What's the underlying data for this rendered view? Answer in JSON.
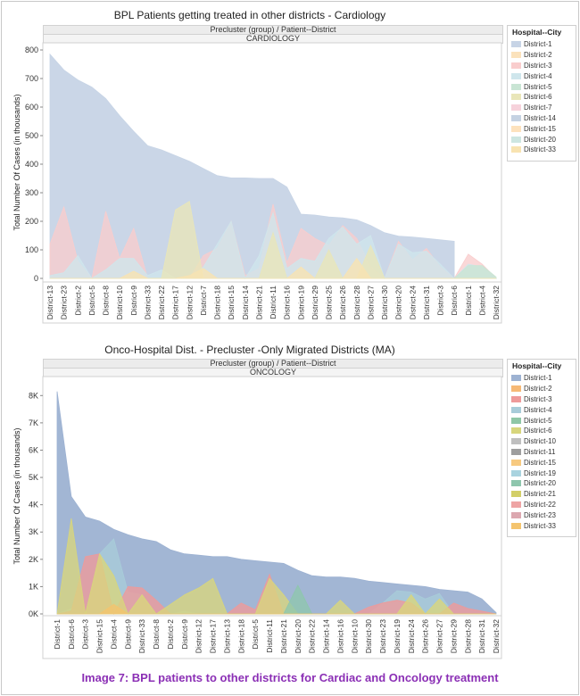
{
  "caption": "Image 7: BPL patients to other districts for Cardiac and Oncology treatment",
  "chart_data": [
    {
      "type": "area",
      "title": "BPL Patients getting treated in other districts - Cardiology",
      "strip_top": "Precluster (group)  /  Patient--District",
      "strip_panel": "CARDIOLOGY",
      "ylabel": "Total Number Of Cases (in thousands)",
      "ylim": [
        0,
        800
      ],
      "yticks": [
        0,
        100,
        200,
        300,
        400,
        500,
        600,
        700,
        800
      ],
      "ytick_labels": [
        "0",
        "100",
        "200",
        "300",
        "400",
        "500",
        "600",
        "700",
        "800"
      ],
      "categories": [
        "District-13",
        "District-23",
        "District-2",
        "District-5",
        "District-8",
        "District-10",
        "District-9",
        "District-33",
        "District-22",
        "District-17",
        "District-12",
        "District-7",
        "District-18",
        "District-15",
        "District-14",
        "District-21",
        "District-11",
        "District-16",
        "District-19",
        "District-29",
        "District-25",
        "District-26",
        "District-28",
        "District-27",
        "District-30",
        "District-20",
        "District-24",
        "District-31",
        "District-3",
        "District-6",
        "District-1",
        "District-4",
        "District-32"
      ],
      "legend_title": "Hospital--City",
      "legend": [
        {
          "name": "District-1",
          "color": "#c7d4e6"
        },
        {
          "name": "District-2",
          "color": "#fbe2bc"
        },
        {
          "name": "District-3",
          "color": "#f9cdcd"
        },
        {
          "name": "District-4",
          "color": "#cfe6ec"
        },
        {
          "name": "District-5",
          "color": "#c9e5d4"
        },
        {
          "name": "District-6",
          "color": "#e9e6b9"
        },
        {
          "name": "District-7",
          "color": "#f6d2db"
        },
        {
          "name": "District-14",
          "color": "#c5d2e2"
        },
        {
          "name": "District-15",
          "color": "#fde2bd"
        },
        {
          "name": "District-20",
          "color": "#cde6e1"
        },
        {
          "name": "District-33",
          "color": "#f8e3b1"
        }
      ],
      "series": [
        {
          "name": "District-1",
          "color": "#c7d4e6",
          "values": [
            785,
            730,
            695,
            670,
            630,
            570,
            515,
            465,
            450,
            430,
            410,
            385,
            360,
            352,
            352,
            350,
            350,
            320,
            225,
            222,
            215,
            212,
            205,
            185,
            160,
            148,
            145,
            140,
            135,
            130,
            null,
            null,
            null
          ]
        },
        {
          "name": "District-3",
          "color": "#f9cdcd",
          "values": [
            120,
            250,
            60,
            0,
            235,
            70,
            175,
            0,
            0,
            0,
            0,
            80,
            105,
            200,
            10,
            35,
            260,
            55,
            175,
            140,
            115,
            185,
            140,
            40,
            0,
            130,
            65,
            105,
            40,
            0,
            85,
            50,
            0
          ]
        },
        {
          "name": "District-4",
          "color": "#cfe6ec",
          "values": [
            10,
            20,
            80,
            0,
            30,
            70,
            70,
            10,
            30,
            0,
            0,
            40,
            120,
            200,
            0,
            80,
            230,
            35,
            70,
            60,
            140,
            180,
            120,
            150,
            0,
            120,
            90,
            95,
            50,
            0,
            50,
            40,
            0
          ]
        },
        {
          "name": "District-6",
          "color": "#e9e6b9",
          "values": [
            0,
            0,
            0,
            0,
            0,
            0,
            0,
            0,
            0,
            240,
            270,
            0,
            0,
            0,
            0,
            0,
            160,
            0,
            0,
            0,
            100,
            0,
            0,
            115,
            0,
            0,
            0,
            0,
            0,
            0,
            0,
            0,
            0
          ]
        },
        {
          "name": "District-5",
          "color": "#c9e5d4",
          "values": [
            0,
            0,
            0,
            0,
            0,
            0,
            0,
            0,
            0,
            0,
            0,
            0,
            0,
            0,
            0,
            0,
            0,
            0,
            0,
            0,
            0,
            0,
            0,
            0,
            0,
            0,
            0,
            0,
            0,
            0,
            45,
            45,
            5
          ]
        },
        {
          "name": "District-33",
          "color": "#f8e3b1",
          "values": [
            0,
            0,
            0,
            0,
            0,
            0,
            25,
            0,
            0,
            0,
            10,
            35,
            0,
            0,
            0,
            0,
            0,
            0,
            40,
            0,
            0,
            0,
            70,
            0,
            0,
            0,
            0,
            0,
            0,
            0,
            0,
            0,
            0
          ]
        }
      ]
    },
    {
      "type": "area",
      "title": "Onco-Hospital Dist. - Precluster -Only Migrated Districts (MA)",
      "strip_top": "Precluster (group)  /  Patient--District",
      "strip_panel": "ONCOLOGY",
      "ylabel": "Total Number Of Cases (in thousands)",
      "ylim": [
        0,
        8500
      ],
      "yticks": [
        0,
        1000,
        2000,
        3000,
        4000,
        5000,
        6000,
        7000,
        8000
      ],
      "ytick_labels": [
        "0K",
        "1K",
        "2K",
        "3K",
        "4K",
        "5K",
        "6K",
        "7K",
        "8K"
      ],
      "categories": [
        "District-1",
        "District-6",
        "District-3",
        "District-15",
        "District-4",
        "District-9",
        "District-33",
        "District-8",
        "District-2",
        "District-9",
        "District-12",
        "District-17",
        "District-13",
        "District-18",
        "District-5",
        "District-11",
        "District-21",
        "District-20",
        "District-22",
        "District-14",
        "District-16",
        "District-10",
        "District-30",
        "District-23",
        "District-19",
        "District-24",
        "District-26",
        "District-27",
        "District-29",
        "District-28",
        "District-31",
        "District-32"
      ],
      "legend_title": "Hospital--City",
      "legend": [
        {
          "name": "District-1",
          "color": "#9db2d2"
        },
        {
          "name": "District-2",
          "color": "#f6b976"
        },
        {
          "name": "District-3",
          "color": "#ee9a9a"
        },
        {
          "name": "District-4",
          "color": "#a8ccd9"
        },
        {
          "name": "District-5",
          "color": "#8fc7a6"
        },
        {
          "name": "District-6",
          "color": "#d8d67c"
        },
        {
          "name": "District-10",
          "color": "#bfbfbf"
        },
        {
          "name": "District-11",
          "color": "#9e9e9e"
        },
        {
          "name": "District-15",
          "color": "#f7c97f"
        },
        {
          "name": "District-19",
          "color": "#a9d3df"
        },
        {
          "name": "District-20",
          "color": "#8ec6ad"
        },
        {
          "name": "District-21",
          "color": "#d3cf67"
        },
        {
          "name": "District-22",
          "color": "#eea4a4"
        },
        {
          "name": "District-23",
          "color": "#dca8b0"
        },
        {
          "name": "District-33",
          "color": "#f4c46e"
        }
      ],
      "series": [
        {
          "name": "District-1",
          "color": "#9db2d2",
          "values": [
            8150,
            4300,
            3550,
            3400,
            3100,
            2900,
            2750,
            2650,
            2350,
            2200,
            2150,
            2100,
            2100,
            2000,
            1950,
            1900,
            1850,
            1600,
            1400,
            1350,
            1350,
            1300,
            1200,
            1150,
            1100,
            1050,
            1000,
            900,
            850,
            800,
            550,
            50
          ]
        },
        {
          "name": "District-4",
          "color": "#a8ccd9",
          "values": [
            0,
            200,
            0,
            2200,
            2750,
            800,
            700,
            0,
            0,
            100,
            0,
            0,
            0,
            0,
            0,
            0,
            0,
            0,
            0,
            0,
            0,
            0,
            0,
            400,
            850,
            800,
            550,
            750,
            0,
            0,
            0,
            0
          ]
        },
        {
          "name": "District-3",
          "color": "#ee9a9a",
          "values": [
            0,
            100,
            2100,
            2200,
            0,
            1000,
            950,
            500,
            0,
            0,
            0,
            0,
            0,
            400,
            150,
            1450,
            0,
            0,
            0,
            0,
            0,
            0,
            250,
            400,
            500,
            400,
            0,
            0,
            400,
            200,
            100,
            0
          ]
        },
        {
          "name": "District-6",
          "color": "#d8d67c",
          "values": [
            0,
            3500,
            0,
            2200,
            1400,
            0,
            700,
            0,
            350,
            700,
            950,
            1300,
            0,
            0,
            0,
            1300,
            700,
            0,
            0,
            0,
            500,
            0,
            0,
            0,
            0,
            700,
            0,
            550,
            0,
            0,
            0,
            0
          ]
        },
        {
          "name": "District-20",
          "color": "#8ec6ad",
          "values": [
            0,
            0,
            0,
            0,
            0,
            0,
            0,
            0,
            0,
            0,
            0,
            0,
            0,
            0,
            0,
            0,
            0,
            1050,
            0,
            0,
            0,
            0,
            0,
            0,
            0,
            0,
            0,
            0,
            0,
            0,
            0,
            0
          ]
        },
        {
          "name": "District-33",
          "color": "#f4c46e",
          "values": [
            0,
            0,
            0,
            0,
            350,
            0,
            0,
            0,
            0,
            0,
            0,
            0,
            0,
            0,
            0,
            0,
            0,
            0,
            0,
            0,
            0,
            0,
            0,
            0,
            0,
            0,
            0,
            0,
            0,
            0,
            0,
            0
          ]
        }
      ]
    }
  ]
}
